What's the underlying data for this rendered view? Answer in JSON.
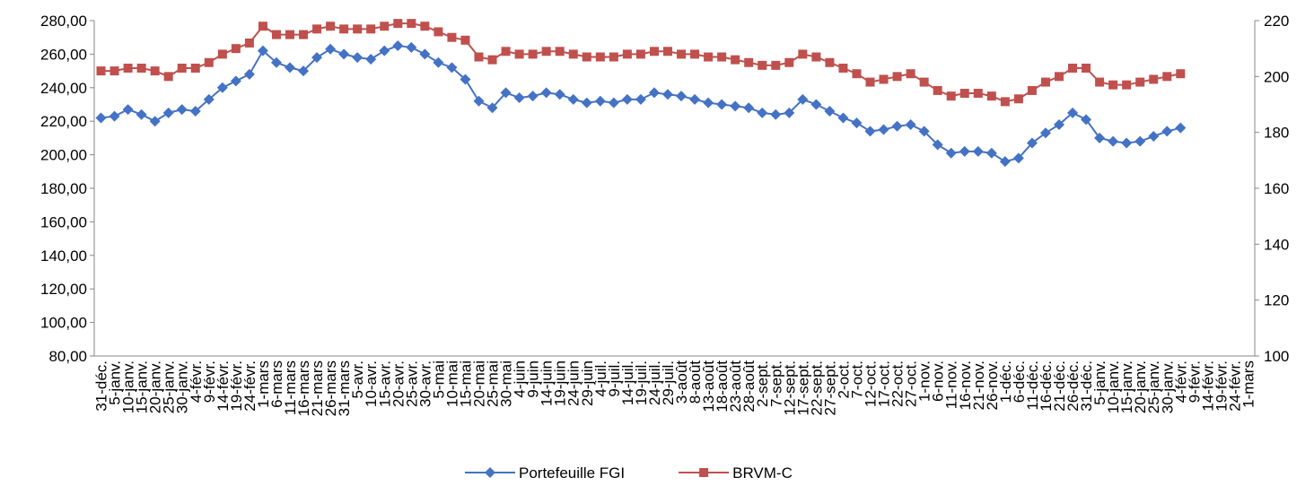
{
  "chart_data": {
    "type": "line",
    "categories": [
      "31-déc.",
      "5-janv.",
      "10-janv.",
      "15-janv.",
      "20-janv.",
      "25-janv.",
      "30-janv.",
      "4-févr.",
      "9-févr.",
      "14-févr.",
      "19-févr.",
      "24-févr.",
      "1-mars",
      "6-mars",
      "11-mars",
      "16-mars",
      "21-mars",
      "26-mars",
      "31-mars",
      "5-avr.",
      "10-avr.",
      "15-avr.",
      "20-avr.",
      "25-avr.",
      "30-avr.",
      "5-mai",
      "10-mai",
      "15-mai",
      "20-mai",
      "25-mai",
      "30-mai",
      "4-juin",
      "9-juin",
      "14-juin",
      "19-juin",
      "24-juin",
      "29-juin",
      "4-juil.",
      "9-juil.",
      "14-juil.",
      "19-juil.",
      "24-juil.",
      "29-juil.",
      "3-août",
      "8-août",
      "13-août",
      "18-août",
      "23-août",
      "28-août",
      "2-sept.",
      "7-sept.",
      "12-sept.",
      "17-sept.",
      "22-sept.",
      "27-sept.",
      "2-oct.",
      "7-oct.",
      "12-oct.",
      "17-oct.",
      "22-oct.",
      "27-oct.",
      "1-nov.",
      "6-nov.",
      "11-nov.",
      "16-nov.",
      "21-nov.",
      "26-nov.",
      "1-déc.",
      "6-déc.",
      "11-déc.",
      "16-déc.",
      "21-déc.",
      "26-déc.",
      "31-déc.",
      "5-janv.",
      "10-janv.",
      "15-janv.",
      "20-janv.",
      "25-janv.",
      "30-janv.",
      "4-févr.",
      "9-févr.",
      "14-févr.",
      "19-févr.",
      "24-févr.",
      "1-mars"
    ],
    "series": [
      {
        "name": "Portefeuille FGI",
        "color": "#4472c4",
        "marker": "diamond",
        "axis": "y",
        "values": [
          222,
          223,
          227,
          224,
          220,
          225,
          227,
          226,
          233,
          240,
          244,
          248,
          262,
          255,
          252,
          250,
          258,
          263,
          260,
          258,
          257,
          262,
          265,
          264,
          260,
          255,
          252,
          245,
          232,
          228,
          237,
          234,
          235,
          237,
          236,
          233,
          231,
          232,
          231,
          233,
          233,
          237,
          236,
          235,
          233,
          231,
          230,
          229,
          228,
          225,
          224,
          225,
          233,
          230,
          226,
          222,
          219,
          214,
          215,
          217,
          218,
          214,
          206,
          201,
          202,
          202,
          201,
          196,
          198,
          207,
          213,
          218,
          225,
          221,
          210,
          208,
          207,
          208,
          211,
          214,
          216,
          null,
          null,
          null,
          null,
          null
        ]
      },
      {
        "name": "BRVM-C",
        "color": "#c0504d",
        "marker": "square",
        "axis": "y2",
        "values": [
          202,
          202,
          203,
          203,
          202,
          200,
          203,
          203,
          205,
          208,
          210,
          212,
          218,
          215,
          215,
          215,
          217,
          218,
          217,
          217,
          217,
          218,
          219,
          219,
          218,
          216,
          214,
          213,
          207,
          206,
          209,
          208,
          208,
          209,
          209,
          208,
          207,
          207,
          207,
          208,
          208,
          209,
          209,
          208,
          208,
          207,
          207,
          206,
          205,
          204,
          204,
          205,
          208,
          207,
          205,
          203,
          201,
          198,
          199,
          200,
          201,
          198,
          195,
          193,
          194,
          194,
          193,
          191,
          192,
          195,
          198,
          200,
          203,
          203,
          198,
          197,
          197,
          198,
          199,
          200,
          201,
          null,
          null,
          null,
          null,
          null
        ]
      }
    ],
    "ylim": [
      80,
      280
    ],
    "yticks": [
      {
        "value": 80,
        "label": "80,00"
      },
      {
        "value": 100,
        "label": "100,00"
      },
      {
        "value": 120,
        "label": "120,00"
      },
      {
        "value": 140,
        "label": "140,00"
      },
      {
        "value": 160,
        "label": "160,00"
      },
      {
        "value": 180,
        "label": "180,00"
      },
      {
        "value": 200,
        "label": "200,00"
      },
      {
        "value": 220,
        "label": "220,00"
      },
      {
        "value": 240,
        "label": "240,00"
      },
      {
        "value": 260,
        "label": "260,00"
      },
      {
        "value": 280,
        "label": "280,00"
      }
    ],
    "y2lim": [
      100,
      220
    ],
    "y2ticks": [
      100,
      120,
      140,
      160,
      180,
      200,
      220
    ],
    "legend": "bottom"
  }
}
